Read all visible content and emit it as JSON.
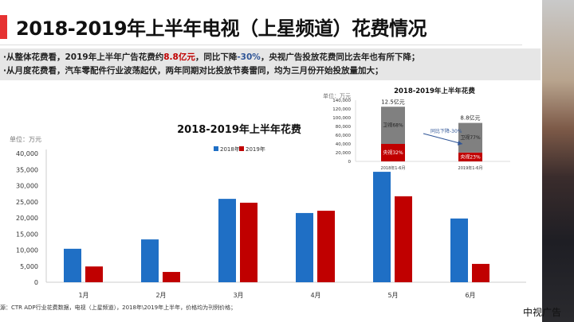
{
  "header": {
    "title": "2018-2019年上半年电视（上星频道）花费情况"
  },
  "summary": {
    "line1_a": "·从整体花费看，2019年上半年广告花费约",
    "line1_highlight": "8.8亿元",
    "line1_b": "，同比下降",
    "line1_pct": "-30%",
    "line1_c": "，央视广告投放花费同比去年也有所下降；",
    "line2": "·从月度花费看，汽车零配件行业波荡起伏，两年同期对比投放节奏雷同，均为三月份开始投放量加大；"
  },
  "source": "源：CTR ADP行业花费数据，电视（上星频道），2018年\\2019年上半年，价格均为刊例价格；",
  "brand": "中视广告",
  "colors": {
    "s2018": "#1f6fc5",
    "s2019": "#c00000",
    "grey": "#808080",
    "accent": "#e63232"
  },
  "chart_data": [
    {
      "type": "bar",
      "title": "2018-2019年上半年花费",
      "unit_label": "单位：万元",
      "categories": [
        "1月",
        "2月",
        "3月",
        "4月",
        "5月",
        "6月"
      ],
      "ylim": [
        0,
        40000
      ],
      "yticks": [
        "0",
        "5,000",
        "10,000",
        "15,000",
        "20,000",
        "25,000",
        "30,000",
        "35,000",
        "40,000"
      ],
      "legend_position": "top-center",
      "series": [
        {
          "name": "2018年",
          "values": [
            10400,
            13300,
            25900,
            21500,
            34300,
            19800
          ]
        },
        {
          "name": "2019年",
          "values": [
            4900,
            3200,
            24700,
            22200,
            26700,
            5700
          ]
        }
      ]
    },
    {
      "type": "stacked-bar",
      "title": "2018-2019年上半年花费",
      "unit_label": "单位：万元",
      "categories": [
        "2018年1-6月",
        "2019年1-6月"
      ],
      "ylim": [
        0,
        140000
      ],
      "yticks": [
        "0",
        "20,000",
        "40,000",
        "60,000",
        "80,000",
        "100,000",
        "120,000",
        "140,000"
      ],
      "totals": [
        "12.5亿元",
        "8.8亿元"
      ],
      "series": [
        {
          "name": "央视",
          "values": [
            40000,
            20240
          ],
          "labels": [
            "央视32%",
            "央视23%"
          ]
        },
        {
          "name": "卫视",
          "values": [
            85000,
            67760
          ],
          "labels": [
            "卫视68%",
            "卫视77%"
          ]
        }
      ],
      "annotation": "同比下降-30%"
    }
  ]
}
